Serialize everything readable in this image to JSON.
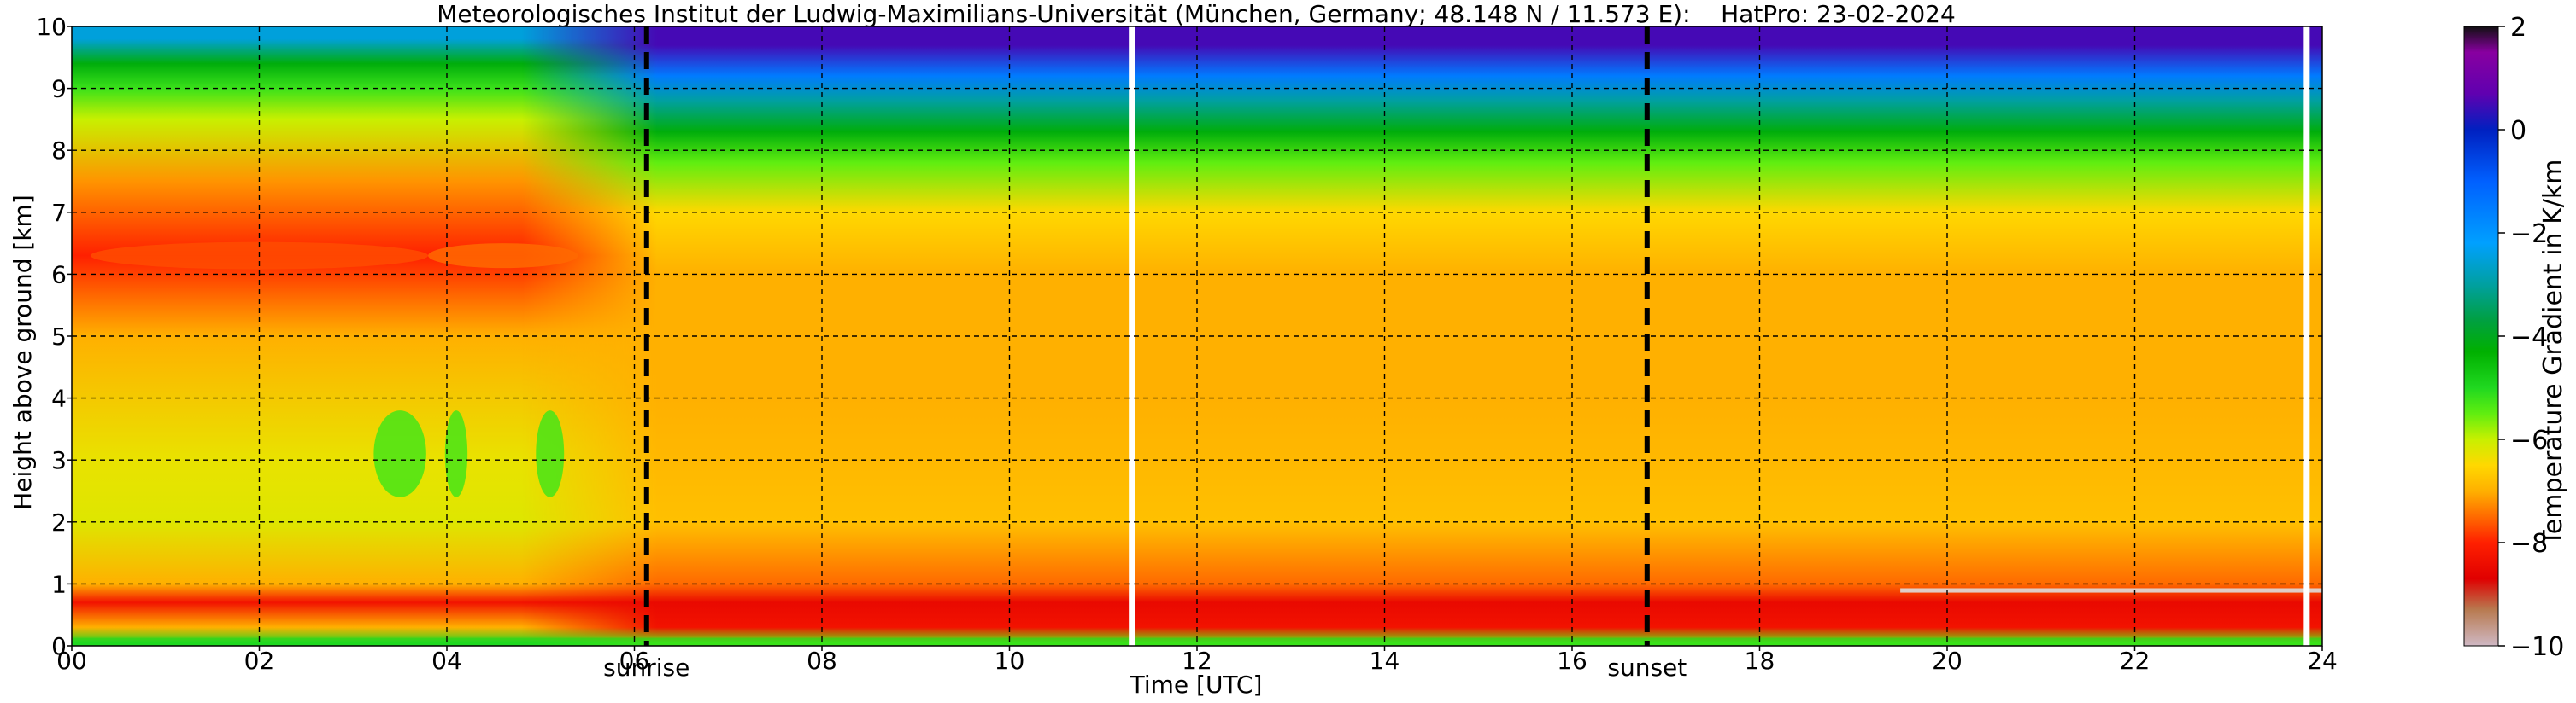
{
  "chart_data": {
    "type": "heatmap",
    "title": "Meteorologisches Institut der Ludwig-Maximilians-Universität (München, Germany; 48.148 N / 11.573 E):    HatPro: 23-02-2024",
    "xlabel": "Time [UTC]",
    "ylabel": "Height above ground [km]",
    "colorbar_label": "Temperature Gradient in K/km",
    "xlim": [
      0,
      24
    ],
    "ylim": [
      0,
      10
    ],
    "clim": [
      -10,
      2
    ],
    "x_ticks": [
      0,
      2,
      4,
      6,
      8,
      10,
      12,
      14,
      16,
      18,
      20,
      22,
      24
    ],
    "x_tick_labels": [
      "00",
      "02",
      "04",
      "06",
      "08",
      "10",
      "12",
      "14",
      "16",
      "18",
      "20",
      "22",
      "24"
    ],
    "y_ticks": [
      0,
      1,
      2,
      3,
      4,
      5,
      6,
      7,
      8,
      9,
      10
    ],
    "y_tick_labels": [
      "0",
      "1",
      "2",
      "3",
      "4",
      "5",
      "6",
      "7",
      "8",
      "9",
      "10"
    ],
    "colorbar_ticks": [
      -10,
      -8,
      -6,
      -4,
      -2,
      0,
      2
    ],
    "colorbar_tick_labels": [
      "−10",
      "−8",
      "−6",
      "−4",
      "−2",
      "0",
      "2"
    ],
    "grid": true,
    "annotations": [
      {
        "label": "sunrise",
        "x": 6.13
      },
      {
        "label": "sunset",
        "x": 16.8
      }
    ],
    "data_gaps": [
      11.3,
      23.83
    ],
    "gradient_profile_night": [
      {
        "height_km": 0.05,
        "value": -5.0
      },
      {
        "height_km": 0.3,
        "value": -7.0
      },
      {
        "height_km": 0.7,
        "value": -8.3
      },
      {
        "height_km": 1.0,
        "value": -7.0
      },
      {
        "height_km": 2.0,
        "value": -6.2
      },
      {
        "height_km": 3.0,
        "value": -6.3
      },
      {
        "height_km": 5.0,
        "value": -7.0
      },
      {
        "height_km": 6.3,
        "value": -8.0
      },
      {
        "height_km": 7.5,
        "value": -7.2
      },
      {
        "height_km": 8.5,
        "value": -6.0
      },
      {
        "height_km": 9.0,
        "value": -5.2
      },
      {
        "height_km": 9.4,
        "value": -4.2
      },
      {
        "height_km": 9.8,
        "value": -2.5
      }
    ],
    "gradient_profile_day": [
      {
        "height_km": 0.05,
        "value": -5.5
      },
      {
        "height_km": 0.3,
        "value": -8.3
      },
      {
        "height_km": 0.7,
        "value": -8.5
      },
      {
        "height_km": 1.0,
        "value": -7.5
      },
      {
        "height_km": 2.0,
        "value": -6.8
      },
      {
        "height_km": 4.0,
        "value": -7.0
      },
      {
        "height_km": 6.0,
        "value": -7.0
      },
      {
        "height_km": 7.0,
        "value": -6.5
      },
      {
        "height_km": 7.8,
        "value": -5.5
      },
      {
        "height_km": 8.3,
        "value": -4.2
      },
      {
        "height_km": 8.8,
        "value": -3.0
      },
      {
        "height_km": 9.2,
        "value": -1.5
      },
      {
        "height_km": 9.7,
        "value": 0.5
      }
    ],
    "colormap": [
      {
        "value": -10,
        "color": "#cfb8c4"
      },
      {
        "value": -9.3,
        "color": "#b87a50"
      },
      {
        "value": -8.7,
        "color": "#e00000"
      },
      {
        "value": -8.0,
        "color": "#ff2000"
      },
      {
        "value": -7.5,
        "color": "#ff6a00"
      },
      {
        "value": -7.0,
        "color": "#ffb000"
      },
      {
        "value": -6.5,
        "color": "#ffd800"
      },
      {
        "value": -6.0,
        "color": "#c8f000"
      },
      {
        "value": -5.5,
        "color": "#60ee10"
      },
      {
        "value": -5.0,
        "color": "#20d820"
      },
      {
        "value": -4.3,
        "color": "#00b000"
      },
      {
        "value": -3.7,
        "color": "#00a040"
      },
      {
        "value": -3.0,
        "color": "#00a0a0"
      },
      {
        "value": -2.2,
        "color": "#00a0ff"
      },
      {
        "value": -1.0,
        "color": "#0060ff"
      },
      {
        "value": 0.0,
        "color": "#0020c0"
      },
      {
        "value": 0.7,
        "color": "#6000b0"
      },
      {
        "value": 1.5,
        "color": "#8800a0"
      },
      {
        "value": 2.0,
        "color": "#101010"
      }
    ]
  }
}
